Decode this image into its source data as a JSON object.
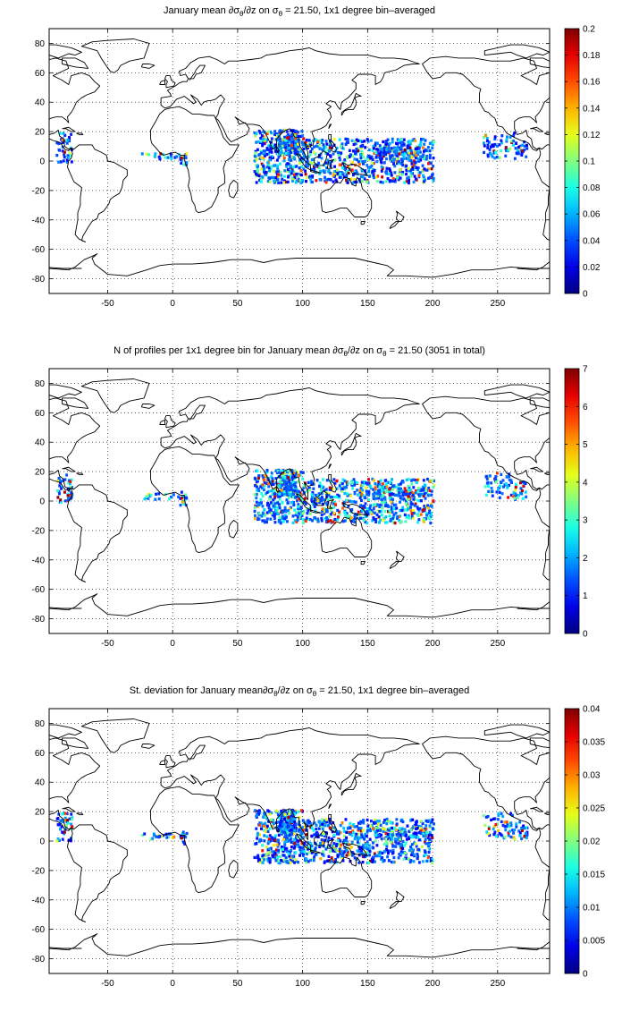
{
  "figure": {
    "panels": [
      {
        "title_html": "January mean ∂σ<sub style=\"font-size:8px\">θ</sub>/∂z on σ<sub style=\"font-size:8px\">θ</sub> = 21.50, 1x1 degree bin&#8211;averaged",
        "title_text": "January mean ∂σθ/∂z on σθ = 21.50, 1x1 degree bin–averaged",
        "colorbar_ticks": [
          "0.2",
          "0.18",
          "0.16",
          "0.14",
          "0.12",
          "0.1",
          "0.08",
          "0.06",
          "0.04",
          "0.02",
          "0"
        ]
      },
      {
        "title_html": "N of profiles per 1x1 degree bin for January mean ∂σ<sub style=\"font-size:8px\">θ</sub>/∂z on σ<sub style=\"font-size:8px\">θ</sub> = 21.50 (3051 in total)",
        "title_text": "N of profiles per 1x1 degree bin for January mean ∂σθ/∂z on σθ = 21.50 (3051 in total)",
        "colorbar_ticks": [
          "7",
          "6",
          "5",
          "4",
          "3",
          "2",
          "1",
          "0"
        ]
      },
      {
        "title_html": "St. deviation for January mean∂σ<sub style=\"font-size:8px\">θ</sub>/∂z on σ<sub style=\"font-size:8px\">θ</sub> = 21.50, 1x1 degree bin&#8211;averaged",
        "title_text": "St. deviation for January mean∂σθ/∂z on σθ = 21.50, 1x1 degree bin–averaged",
        "colorbar_ticks": [
          "0.04",
          "0.035",
          "0.03",
          "0.025",
          "0.02",
          "0.015",
          "0.01",
          "0.005",
          "0"
        ]
      }
    ],
    "axes": {
      "x_ticks": [
        "-50",
        "0",
        "50",
        "100",
        "150",
        "200",
        "250"
      ],
      "y_ticks": [
        "80",
        "60",
        "40",
        "20",
        "0",
        "-20",
        "-40",
        "-60",
        "-80"
      ],
      "xlim": [
        -95,
        290
      ],
      "ylim": [
        -90,
        90
      ],
      "grid": "dotted"
    },
    "colormap": "jet",
    "data_regions": [
      "Indian Ocean (Bay of Bengal / Arabian Sea)",
      "Indonesian seas / West Pacific",
      "Eastern tropical Pacific",
      "Gulf of Guinea",
      "Caribbean"
    ]
  }
}
